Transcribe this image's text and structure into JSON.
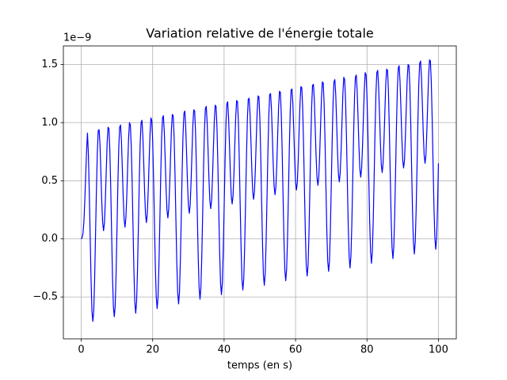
{
  "chart_data": {
    "type": "line",
    "title": "Variation relative de l'énergie totale",
    "xlabel": "temps (en s)",
    "offset_text": "1e−9",
    "color": "#0000ff",
    "grid": true,
    "xlim": [
      -5,
      105
    ],
    "ylim": [
      -0.86,
      1.66
    ],
    "xticks": [
      0,
      20,
      40,
      60,
      80,
      100
    ],
    "yticks": [
      {
        "value": -0.5,
        "label": "−0.5"
      },
      {
        "value": 0,
        "label": "0.0"
      },
      0.5,
      {
        "value": 1,
        "label": "1.0"
      },
      1.5
    ],
    "x": [
      0,
      0.25,
      0.5,
      0.75,
      1,
      1.25,
      1.5,
      1.75,
      2,
      2.25,
      2.5,
      2.75,
      3,
      3.25,
      3.5,
      3.75,
      4,
      4.25,
      4.5,
      4.75,
      5,
      5.25,
      5.5,
      5.75,
      6,
      6.25,
      6.5,
      6.75,
      7,
      7.25,
      7.5,
      7.75,
      8,
      8.25,
      8.5,
      8.75,
      9,
      9.25,
      9.5,
      9.75,
      10,
      10.25,
      10.5,
      10.75,
      11,
      11.25,
      11.5,
      11.75,
      12,
      12.25,
      12.5,
      12.75,
      13,
      13.25,
      13.5,
      13.75,
      14,
      14.25,
      14.5,
      14.75,
      15,
      15.25,
      15.5,
      15.75,
      16,
      16.25,
      16.5,
      16.75,
      17,
      17.25,
      17.5,
      17.75,
      18,
      18.25,
      18.5,
      18.75,
      19,
      19.25,
      19.5,
      19.75,
      20,
      20.25,
      20.5,
      20.75,
      21,
      21.25,
      21.5,
      21.75,
      22,
      22.25,
      22.5,
      22.75,
      23,
      23.25,
      23.5,
      23.75,
      24,
      24.25,
      24.5,
      24.75,
      25,
      25.25,
      25.5,
      25.75,
      26,
      26.25,
      26.5,
      26.75,
      27,
      27.25,
      27.5,
      27.75,
      28,
      28.25,
      28.5,
      28.75,
      29,
      29.25,
      29.5,
      29.75,
      30,
      30.25,
      30.5,
      30.75,
      31,
      31.25,
      31.5,
      31.75,
      32,
      32.25,
      32.5,
      32.75,
      33,
      33.25,
      33.5,
      33.75,
      34,
      34.25,
      34.5,
      34.75,
      35,
      35.25,
      35.5,
      35.75,
      36,
      36.25,
      36.5,
      36.75,
      37,
      37.25,
      37.5,
      37.75,
      38,
      38.25,
      38.5,
      38.75,
      39,
      39.25,
      39.5,
      39.75,
      40,
      40.25,
      40.5,
      40.75,
      41,
      41.25,
      41.5,
      41.75,
      42,
      42.25,
      42.5,
      42.75,
      43,
      43.25,
      43.5,
      43.75,
      44,
      44.25,
      44.5,
      44.75,
      45,
      45.25,
      45.5,
      45.75,
      46,
      46.25,
      46.5,
      46.75,
      47,
      47.25,
      47.5,
      47.75,
      48,
      48.25,
      48.5,
      48.75,
      49,
      49.25,
      49.5,
      49.75,
      50,
      50.25,
      50.5,
      50.75,
      51,
      51.25,
      51.5,
      51.75,
      52,
      52.25,
      52.5,
      52.75,
      53,
      53.25,
      53.5,
      53.75,
      54,
      54.25,
      54.5,
      54.75,
      55,
      55.25,
      55.5,
      55.75,
      56,
      56.25,
      56.5,
      56.75,
      57,
      57.25,
      57.5,
      57.75,
      58,
      58.25,
      58.5,
      58.75,
      59,
      59.25,
      59.5,
      59.75,
      60,
      60.25,
      60.5,
      60.75,
      61,
      61.25,
      61.5,
      61.75,
      62,
      62.25,
      62.5,
      62.75,
      63,
      63.25,
      63.5,
      63.75,
      64,
      64.25,
      64.5,
      64.75,
      65,
      65.25,
      65.5,
      65.75,
      66,
      66.25,
      66.5,
      66.75,
      67,
      67.25,
      67.5,
      67.75,
      68,
      68.25,
      68.5,
      68.75,
      69,
      69.25,
      69.5,
      69.75,
      70,
      70.25,
      70.5,
      70.75,
      71,
      71.25,
      71.5,
      71.75,
      72,
      72.25,
      72.5,
      72.75,
      73,
      73.25,
      73.5,
      73.75,
      74,
      74.25,
      74.5,
      74.75,
      75,
      75.25,
      75.5,
      75.75,
      76,
      76.25,
      76.5,
      76.75,
      77,
      77.25,
      77.5,
      77.75,
      78,
      78.25,
      78.5,
      78.75,
      79,
      79.25,
      79.5,
      79.75,
      80,
      80.25,
      80.5,
      80.75,
      81,
      81.25,
      81.5,
      81.75,
      82,
      82.25,
      82.5,
      82.75,
      83,
      83.25,
      83.5,
      83.75,
      84,
      84.25,
      84.5,
      84.75,
      85,
      85.25,
      85.5,
      85.75,
      86,
      86.25,
      86.5,
      86.75,
      87,
      87.25,
      87.5,
      87.75,
      88,
      88.25,
      88.5,
      88.75,
      89,
      89.25,
      89.5,
      89.75,
      90,
      90.25,
      90.5,
      90.75,
      91,
      91.25,
      91.5,
      91.75,
      92,
      92.25,
      92.5,
      92.75,
      93,
      93.25,
      93.5,
      93.75,
      94,
      94.25,
      94.5,
      94.75,
      95,
      95.25,
      95.5,
      95.75,
      96,
      96.25,
      96.5,
      96.75,
      97,
      97.25,
      97.5,
      97.75,
      98,
      98.25,
      98.5,
      98.75,
      99,
      99.25,
      99.5,
      99.75,
      100
    ],
    "values": [
      0,
      0.01,
      0.05,
      0.15,
      0.33,
      0.55,
      0.76,
      0.91,
      0.73,
      0.41,
      0.02,
      -0.35,
      -0.62,
      -0.71,
      -0.62,
      -0.35,
      0.03,
      0.42,
      0.74,
      0.93,
      0.94,
      0.81,
      0.57,
      0.32,
      0.14,
      0.07,
      0.14,
      0.33,
      0.58,
      0.82,
      0.96,
      0.95,
      0.77,
      0.45,
      0.06,
      -0.32,
      -0.58,
      -0.67,
      -0.58,
      -0.31,
      0.07,
      0.46,
      0.78,
      0.96,
      0.98,
      0.85,
      0.61,
      0.36,
      0.17,
      0.1,
      0.18,
      0.37,
      0.62,
      0.86,
      1.0,
      0.98,
      0.8,
      0.49,
      0.1,
      -0.28,
      -0.54,
      -0.64,
      -0.54,
      -0.27,
      0.1,
      0.5,
      0.82,
      1.0,
      1.02,
      0.88,
      0.65,
      0.4,
      0.21,
      0.14,
      0.22,
      0.41,
      0.66,
      0.9,
      1.04,
      1.02,
      0.84,
      0.52,
      0.13,
      -0.24,
      -0.5,
      -0.6,
      -0.5,
      -0.23,
      0.14,
      0.54,
      0.86,
      1.04,
      1.06,
      0.92,
      0.69,
      0.44,
      0.25,
      0.18,
      0.26,
      0.45,
      0.7,
      0.94,
      1.07,
      1.06,
      0.88,
      0.56,
      0.17,
      -0.2,
      -0.46,
      -0.56,
      -0.46,
      -0.19,
      0.18,
      0.58,
      0.9,
      1.08,
      1.1,
      0.96,
      0.73,
      0.48,
      0.29,
      0.22,
      0.29,
      0.49,
      0.74,
      0.98,
      1.11,
      1.1,
      0.92,
      0.6,
      0.21,
      -0.16,
      -0.42,
      -0.52,
      -0.42,
      -0.15,
      0.22,
      0.62,
      0.94,
      1.12,
      1.14,
      1.0,
      0.77,
      0.52,
      0.33,
      0.26,
      0.33,
      0.53,
      0.78,
      1.01,
      1.15,
      1.14,
      0.96,
      0.64,
      0.25,
      -0.12,
      -0.38,
      -0.48,
      -0.38,
      -0.11,
      0.26,
      0.65,
      0.98,
      1.16,
      1.18,
      1.04,
      0.81,
      0.56,
      0.37,
      0.3,
      0.37,
      0.56,
      0.82,
      1.05,
      1.19,
      1.18,
      1.0,
      0.68,
      0.29,
      -0.08,
      -0.35,
      -0.44,
      -0.34,
      -0.07,
      0.3,
      0.69,
      1.02,
      1.2,
      1.21,
      1.08,
      0.85,
      0.6,
      0.41,
      0.34,
      0.41,
      0.6,
      0.86,
      1.09,
      1.23,
      1.22,
      1.04,
      0.72,
      0.33,
      -0.04,
      -0.31,
      -0.4,
      -0.3,
      -0.04,
      0.34,
      0.73,
      1.05,
      1.24,
      1.25,
      1.12,
      0.89,
      0.64,
      0.45,
      0.38,
      0.45,
      0.64,
      0.9,
      1.13,
      1.27,
      1.26,
      1.08,
      0.76,
      0.37,
      0,
      -0.27,
      -0.36,
      -0.26,
      0,
      0.38,
      0.77,
      1.09,
      1.28,
      1.29,
      1.16,
      0.93,
      0.68,
      0.49,
      0.42,
      0.49,
      0.68,
      0.94,
      1.17,
      1.31,
      1.3,
      1.12,
      0.8,
      0.41,
      0.04,
      -0.23,
      -0.32,
      -0.23,
      0.04,
      0.42,
      0.81,
      1.13,
      1.32,
      1.33,
      1.2,
      0.96,
      0.71,
      0.53,
      0.46,
      0.53,
      0.72,
      0.97,
      1.21,
      1.35,
      1.34,
      1.16,
      0.84,
      0.45,
      0.07,
      -0.19,
      -0.28,
      -0.19,
      0.08,
      0.46,
      0.85,
      1.17,
      1.35,
      1.37,
      1.24,
      1.0,
      0.75,
      0.56,
      0.49,
      0.57,
      0.76,
      1.01,
      1.25,
      1.39,
      1.37,
      1.19,
      0.88,
      0.49,
      0.11,
      -0.15,
      -0.25,
      -0.15,
      0.12,
      0.5,
      0.89,
      1.21,
      1.39,
      1.41,
      1.27,
      1.04,
      0.79,
      0.6,
      0.53,
      0.61,
      0.8,
      1.05,
      1.29,
      1.43,
      1.41,
      1.23,
      0.91,
      0.52,
      0.15,
      -0.11,
      -0.21,
      -0.11,
      0.16,
      0.53,
      0.93,
      1.25,
      1.43,
      1.45,
      1.31,
      1.08,
      0.83,
      0.64,
      0.57,
      0.65,
      0.84,
      1.09,
      1.33,
      1.46,
      1.45,
      1.27,
      0.95,
      0.56,
      0.19,
      -0.07,
      -0.17,
      -0.07,
      0.2,
      0.57,
      0.97,
      1.29,
      1.47,
      1.49,
      1.35,
      1.12,
      0.87,
      0.68,
      0.61,
      0.68,
      0.88,
      1.13,
      1.37,
      1.5,
      1.49,
      1.31,
      0.99,
      0.6,
      0.23,
      -0.03,
      -0.13,
      -0.03,
      0.24,
      0.61,
      1.01,
      1.33,
      1.51,
      1.53,
      1.39,
      1.16,
      0.91,
      0.72,
      0.65,
      0.72,
      0.92,
      1.17,
      1.4,
      1.54,
      1.53,
      1.35,
      1.03,
      0.64,
      0.27,
      0.01,
      -0.09,
      0.01,
      0.28,
      0.65
    ]
  }
}
